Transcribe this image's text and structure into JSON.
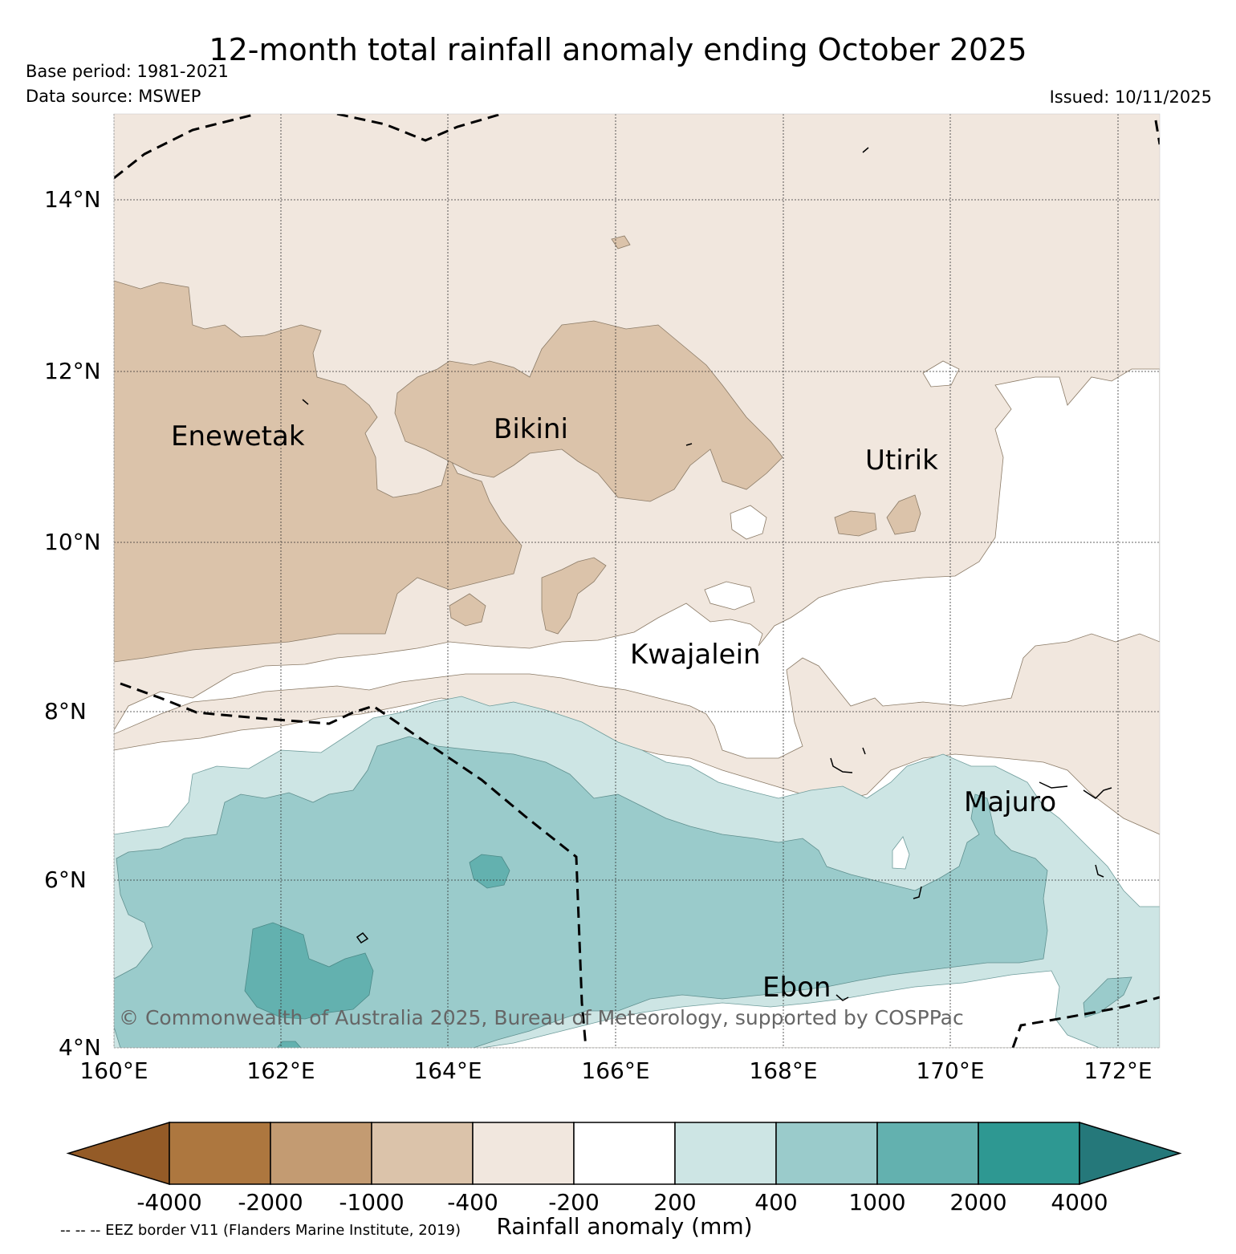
{
  "header": {
    "title": "12-month total rainfall anomaly ending October 2025",
    "base_period": "Base period: 1981-2021",
    "data_source": "Data source: MSWEP",
    "issued": "Issued: 10/11/2025"
  },
  "map": {
    "lat_labels": [
      "14°N",
      "12°N",
      "10°N",
      "8°N",
      "6°N",
      "4°N"
    ],
    "lon_labels": [
      "160°E",
      "162°E",
      "164°E",
      "166°E",
      "168°E",
      "170°E",
      "172°E"
    ],
    "places": [
      "Enewetak",
      "Bikini",
      "Utirik",
      "Kwajalein",
      "Majuro",
      "Ebon"
    ],
    "copyright": "© Commonwealth of Australia 2025, Bureau of Meteorology, supported by COSPPac",
    "extent": {
      "lon": [
        160,
        172.5
      ],
      "lat": [
        4,
        15
      ]
    }
  },
  "legend": {
    "label": "Rainfall anomaly (mm)",
    "ticks": [
      "-4000",
      "-2000",
      "-1000",
      "-400",
      "-200",
      "200",
      "400",
      "1000",
      "2000",
      "4000"
    ],
    "colors": [
      "#945b27",
      "#ad773f",
      "#c39b72",
      "#dbc3aa",
      "#f1e7de",
      "#ffffff",
      "#cde5e4",
      "#9acbcb",
      "#63b1af",
      "#2e9892",
      "#25787a"
    ],
    "eez_note": "-- -- -- EEZ border V11 (Flanders Marine Institute, 2019)"
  }
}
